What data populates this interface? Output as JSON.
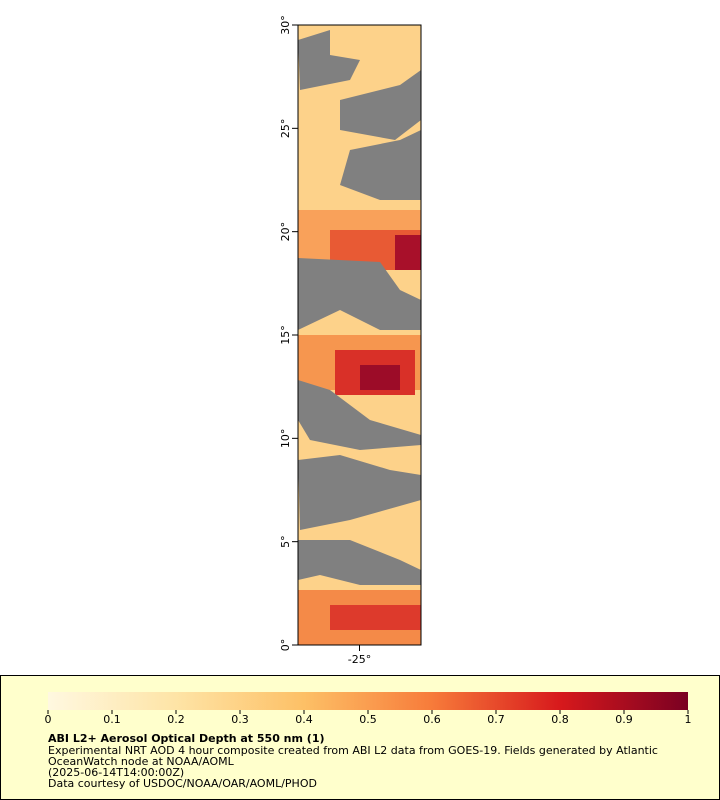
{
  "map": {
    "latlim": [
      0,
      30
    ],
    "lonlim": [
      -28,
      -22
    ],
    "lat_ticks": [
      {
        "value": 0,
        "label": "0°"
      },
      {
        "value": 5,
        "label": "5°"
      },
      {
        "value": 10,
        "label": "10°"
      },
      {
        "value": 15,
        "label": "15°"
      },
      {
        "value": 20,
        "label": "20°"
      },
      {
        "value": 25,
        "label": "25°"
      },
      {
        "value": 30,
        "label": "30°"
      }
    ],
    "lon_ticks": [
      {
        "value": -25,
        "label": "-25°"
      }
    ]
  },
  "colorbar": {
    "range": [
      0,
      1
    ],
    "ticks": [
      0,
      0.1,
      0.2,
      0.3,
      0.4,
      0.5,
      0.6,
      0.7,
      0.8,
      0.9,
      1
    ]
  },
  "legend": {
    "title": "ABI L2+ Aerosol Optical Depth at 550 nm (1)",
    "lines": [
      "Experimental NRT AOD 4 hour composite created from ABI L2 data from GOES-19. Fields generated by Atlantic",
      "OceanWatch node at NOAA/AOML",
      "(2025-06-14T14:00:00Z)",
      "Data courtesy of USDOC/NOAA/OAR/AOML/PHOD"
    ]
  }
}
